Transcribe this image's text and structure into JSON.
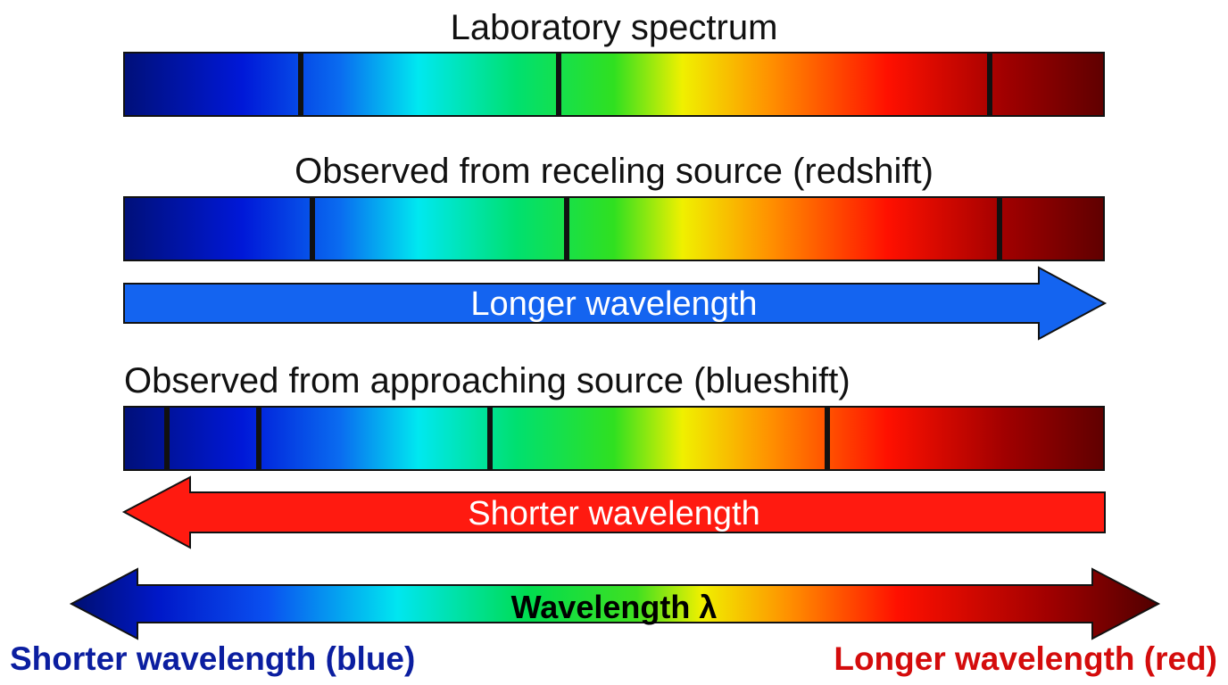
{
  "titles": {
    "laboratory": "Laboratory spectrum",
    "redshift": "Observed from receling source (redshift)",
    "blueshift": "Observed from approaching source (blueshift)"
  },
  "arrows": {
    "redshift_arrow": "Longer wavelength",
    "blueshift_arrow": "Shorter wavelength",
    "axis_label": "Wavelength λ"
  },
  "axis_ends": {
    "short": "Shorter wavelength (blue)",
    "long": "Longer wavelength (red)"
  },
  "colors": {
    "blue_arrow": "#1464f0",
    "red_arrow": "#ff1a10",
    "short_label": "#0b1ea0",
    "long_label": "#d40c0c",
    "spectral_line": "#111111"
  }
}
